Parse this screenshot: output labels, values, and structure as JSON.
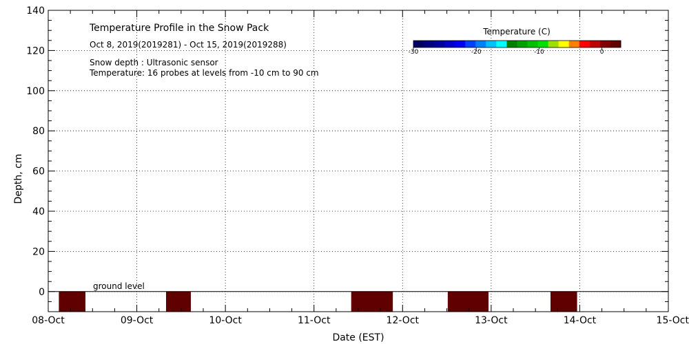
{
  "chart_data": {
    "type": "heatmap",
    "title": "Temperature Profile in the Snow Pack",
    "subtitle": "Oct  8, 2019(2019281) - Oct 15, 2019(2019288)",
    "notes": [
      "Snow depth : Ultrasonic sensor",
      "Temperature: 16 probes at levels from -10 cm to 90 cm"
    ],
    "xlabel": "Date (EST)",
    "ylabel": "Depth, cm",
    "x_ticks": [
      "08-Oct",
      "09-Oct",
      "10-Oct",
      "11-Oct",
      "12-Oct",
      "13-Oct",
      "14-Oct",
      "15-Oct"
    ],
    "xlim_days": [
      0,
      7
    ],
    "ylim": [
      -10,
      140
    ],
    "y_ticks": [
      0,
      20,
      40,
      60,
      80,
      100,
      120,
      140
    ],
    "grid": true,
    "ground_level_label": "ground level",
    "ground_level": 0,
    "temperature_cells": [
      {
        "start_day": 0.12,
        "end_day": 0.42,
        "y_top": 0,
        "y_bottom": -10,
        "temperature": 3
      },
      {
        "start_day": 1.33,
        "end_day": 1.61,
        "y_top": 0,
        "y_bottom": -10,
        "temperature": 3
      },
      {
        "start_day": 3.42,
        "end_day": 3.89,
        "y_top": 0,
        "y_bottom": -10,
        "temperature": 3
      },
      {
        "start_day": 4.51,
        "end_day": 4.97,
        "y_top": 0,
        "y_bottom": -10,
        "temperature": 3
      },
      {
        "start_day": 5.67,
        "end_day": 5.97,
        "y_top": 0,
        "y_bottom": -10,
        "temperature": 3
      }
    ],
    "colorbar": {
      "title": "Temperature (C)",
      "min": -30,
      "max": 3,
      "tick_values": [
        -30,
        -20,
        -10,
        0
      ],
      "tick_labels": [
        "-30",
        "-20",
        "-10",
        "0"
      ],
      "colors": [
        "#000060",
        "#000080",
        "#0000a0",
        "#0000c8",
        "#0000f0",
        "#0040ff",
        "#0080ff",
        "#00c0ff",
        "#00ffff",
        "#008000",
        "#00a000",
        "#00c000",
        "#00e000",
        "#a0e000",
        "#ffff00",
        "#ff8000",
        "#ff0000",
        "#c00000",
        "#800000",
        "#600000"
      ]
    }
  }
}
